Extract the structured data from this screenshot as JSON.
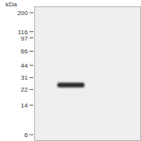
{
  "chart_data": {
    "type": "blot",
    "y_label": "kDa",
    "log": "y",
    "categories": [
      null
    ],
    "values": [
      25
    ],
    "color": "#2a2a2a",
    "ylim": [
      5,
      240
    ],
    "yticks": [
      200,
      116,
      97,
      66,
      44,
      31,
      22,
      14,
      6
    ],
    "grid": false
  }
}
